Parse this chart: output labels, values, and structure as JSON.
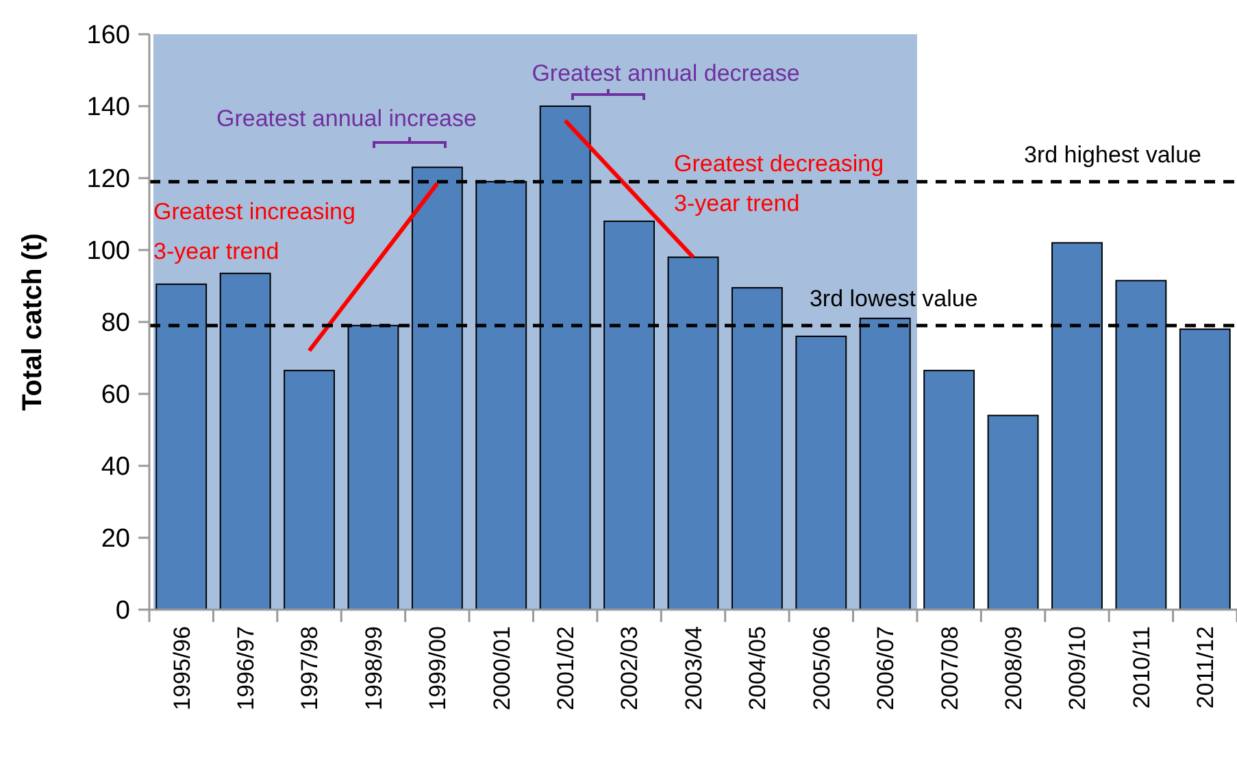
{
  "chart_data": {
    "type": "bar",
    "ylabel": "Total catch (t)",
    "categories": [
      "1995/96",
      "1996/97",
      "1997/98",
      "1998/99",
      "1999/00",
      "2000/01",
      "2001/02",
      "2002/03",
      "2003/04",
      "2004/05",
      "2005/06",
      "2006/07",
      "2007/08",
      "2008/09",
      "2009/10",
      "2010/11",
      "2011/12"
    ],
    "series": [
      {
        "color": "#4f81bd",
        "values": [
          90.5,
          93.5,
          66.5,
          79,
          123,
          119,
          140,
          108,
          98,
          89.5,
          76,
          81,
          66.5,
          54,
          102,
          91.5,
          78
        ]
      },
      {
        "type": "line",
        "color": "#ff0000",
        "x": [
          "1997/98",
          "1999/00"
        ],
        "values": [
          72,
          118.5
        ]
      },
      {
        "type": "line",
        "color": "#ff0000",
        "x": [
          "2001/02",
          "2003/04"
        ],
        "values": [
          136,
          98
        ]
      }
    ],
    "ylim": [
      0,
      160
    ],
    "yticks": [
      0,
      20,
      40,
      60,
      80,
      100,
      120,
      140,
      160
    ],
    "ref_lines": [
      {
        "axis": "y",
        "value": 119,
        "label": "3rd highest value",
        "color": "#000000",
        "line_style": "dashed"
      },
      {
        "axis": "y",
        "value": 79,
        "label": "3rd lowest value",
        "color": "#000000",
        "line_style": "dashed"
      }
    ],
    "bands": [
      {
        "axis": "x",
        "from": "1995/96",
        "to": "2006/07",
        "color": "#a7bfdc"
      }
    ],
    "annotations": [
      "Greatest annual increase",
      "Greatest annual decrease",
      "Greatest increasing\n3-year trend",
      "Greatest decreasing\n3-year trend"
    ]
  }
}
